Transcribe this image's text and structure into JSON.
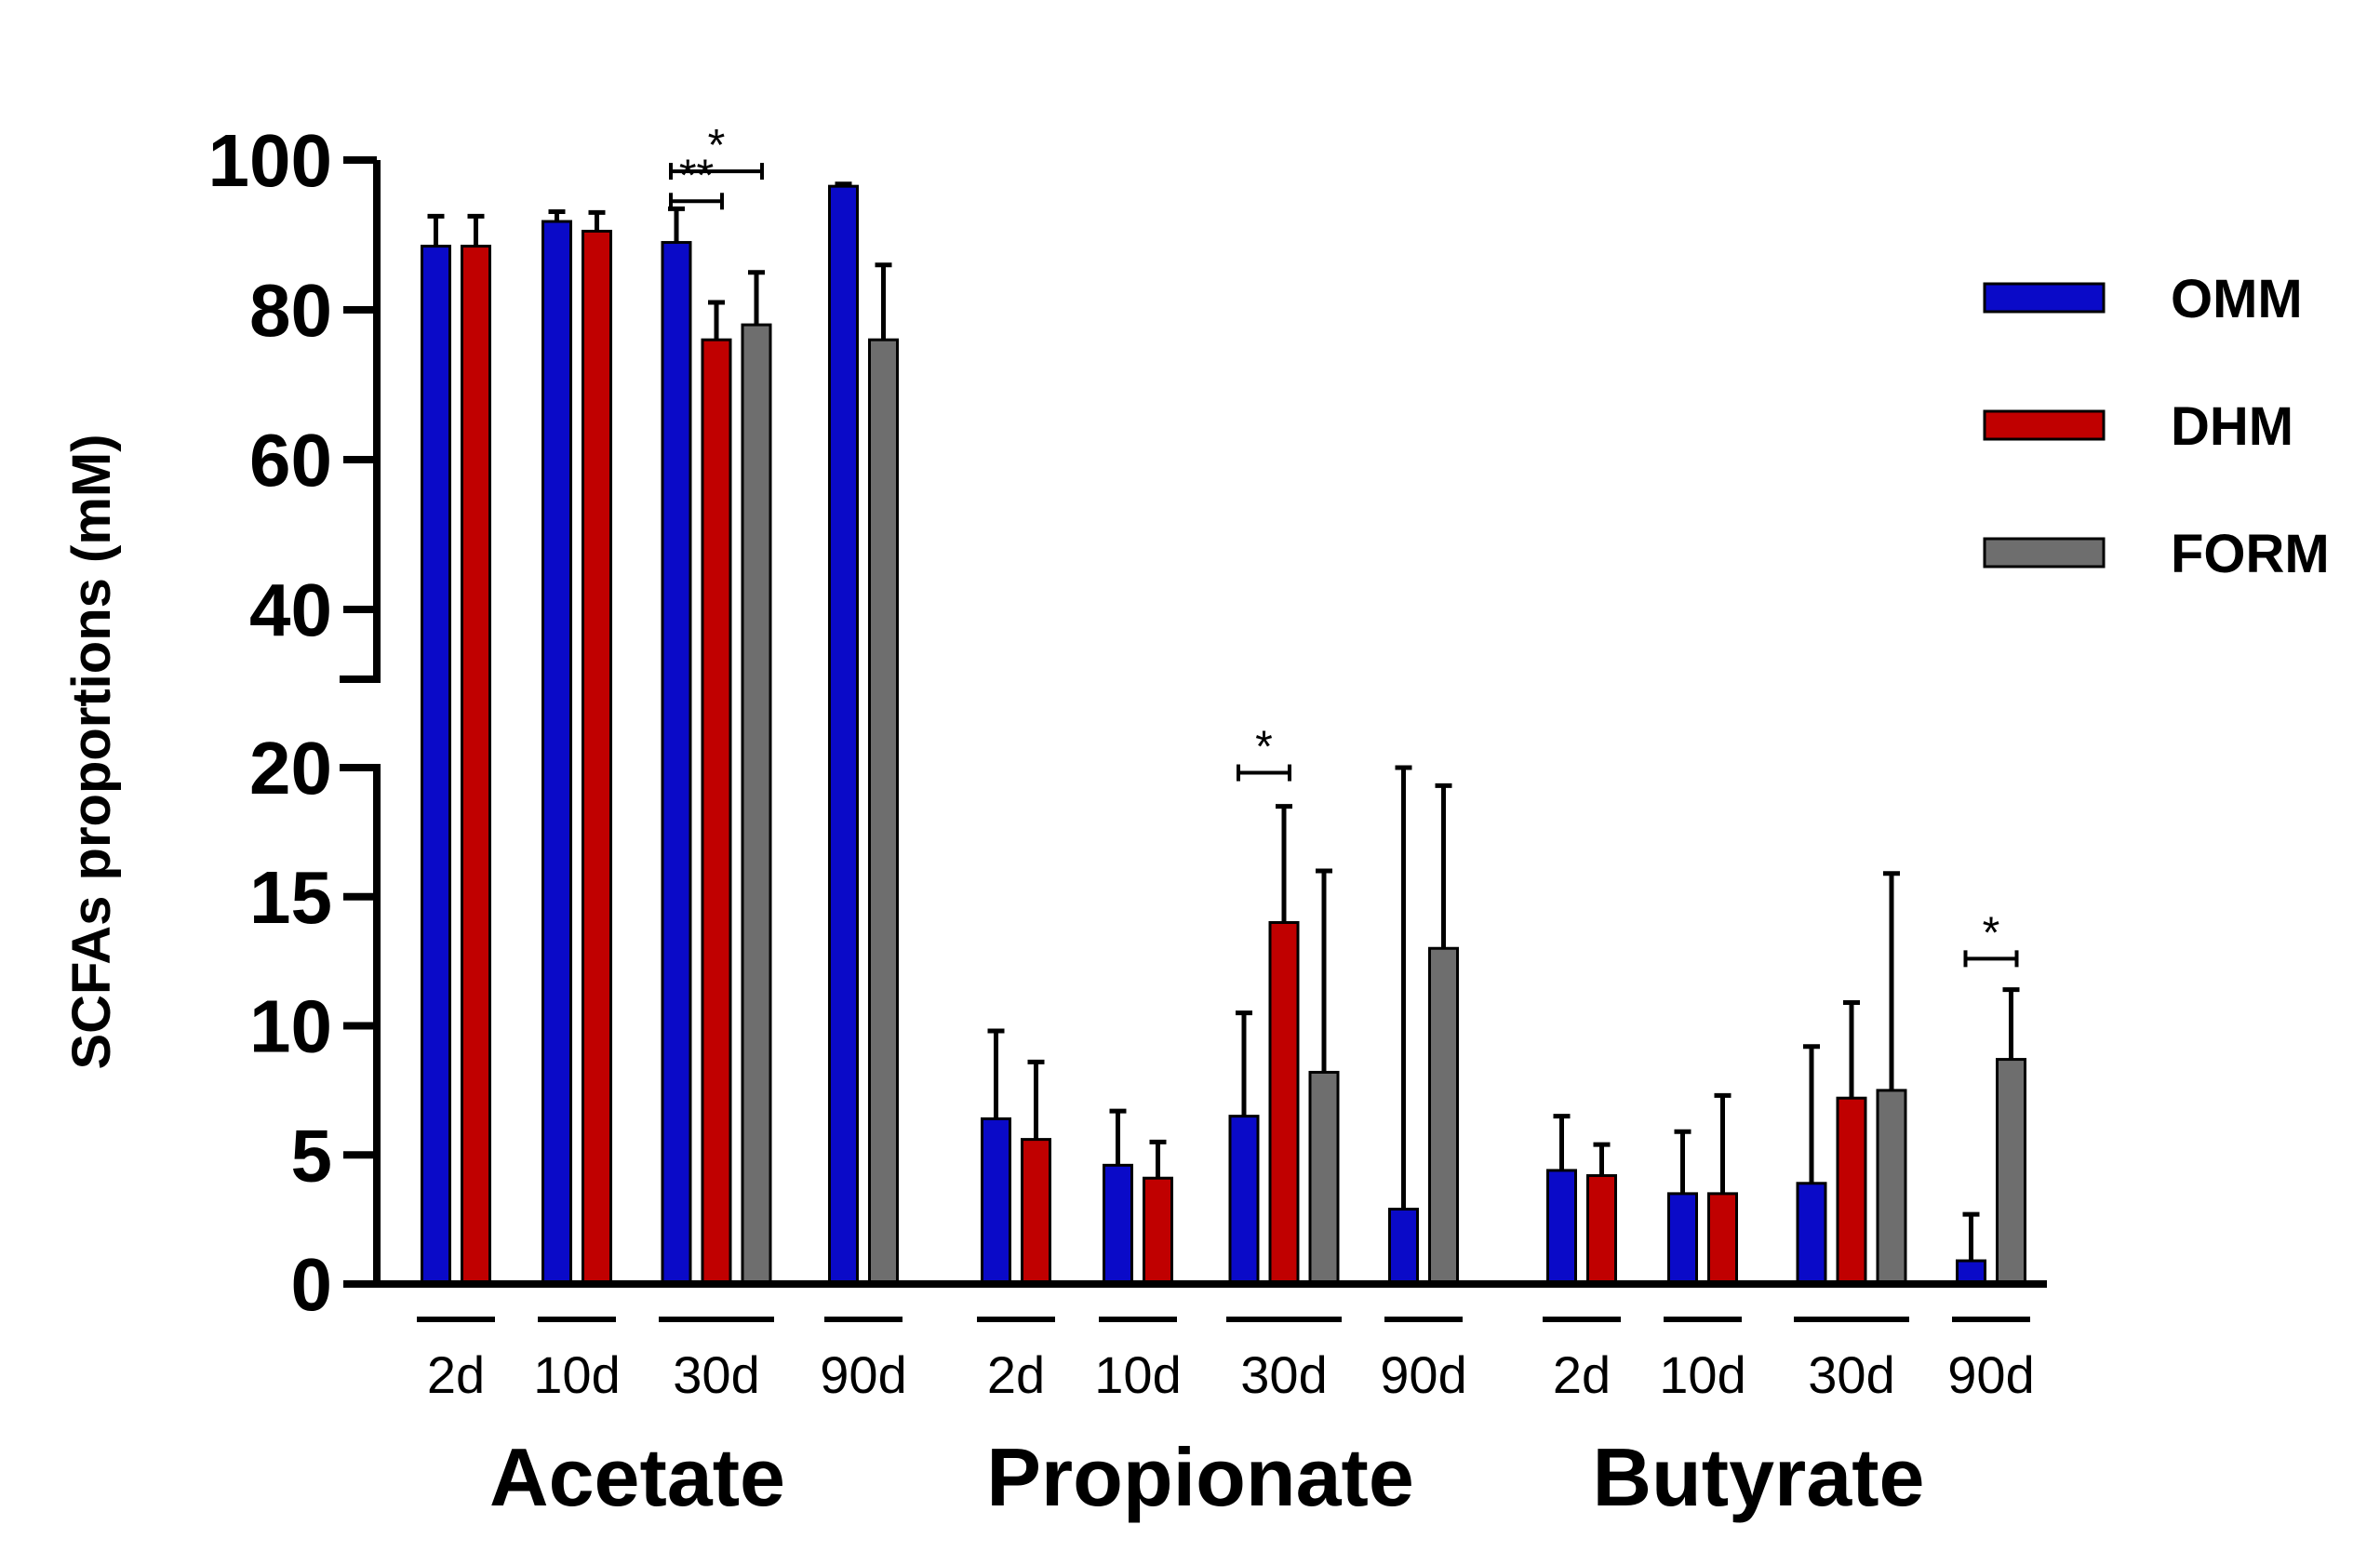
{
  "chart_data": {
    "type": "bar",
    "ylabel": "SCFAs proportions (mM)",
    "axis_break": {
      "lower": [
        0,
        20
      ],
      "upper": [
        40,
        100
      ]
    },
    "lower_ticks": [
      "0",
      "5",
      "10",
      "15",
      "20"
    ],
    "upper_ticks": [
      "40",
      "60",
      "80",
      "100"
    ],
    "colors": {
      "OMM": "#0a0ac8",
      "DHM": "#c00000",
      "FORM": "#6e6e6e"
    },
    "legend": [
      {
        "name": "OMM",
        "color": "#0a0ac8"
      },
      {
        "name": "DHM",
        "color": "#c00000"
      },
      {
        "name": "FORM",
        "color": "#6e6e6e"
      }
    ],
    "groups": [
      {
        "name": "Acetate",
        "timepoints": [
          {
            "label": "2d",
            "bars": [
              {
                "series": "OMM",
                "value": 88.5,
                "err": 4.0
              },
              {
                "series": "DHM",
                "value": 88.5,
                "err": 4.0
              }
            ]
          },
          {
            "label": "10d",
            "bars": [
              {
                "series": "OMM",
                "value": 91.8,
                "err": 1.3
              },
              {
                "series": "DHM",
                "value": 90.5,
                "err": 2.5
              }
            ]
          },
          {
            "label": "30d",
            "bars": [
              {
                "series": "OMM",
                "value": 89.0,
                "err": 4.5
              },
              {
                "series": "DHM",
                "value": 76.0,
                "err": 5.0
              },
              {
                "series": "FORM",
                "value": 78.0,
                "err": 7.0
              }
            ]
          },
          {
            "label": "90d",
            "bars": [
              {
                "series": "OMM",
                "value": 96.5,
                "err": 0.3
              },
              {
                "series": "FORM",
                "value": 76.0,
                "err": 10.0
              }
            ]
          }
        ]
      },
      {
        "name": "Propionate",
        "timepoints": [
          {
            "label": "2d",
            "bars": [
              {
                "series": "OMM",
                "value": 6.4,
                "err": 3.4
              },
              {
                "series": "DHM",
                "value": 5.6,
                "err": 3.0
              }
            ]
          },
          {
            "label": "10d",
            "bars": [
              {
                "series": "OMM",
                "value": 4.6,
                "err": 2.1
              },
              {
                "series": "DHM",
                "value": 4.1,
                "err": 1.4
              }
            ]
          },
          {
            "label": "30d",
            "bars": [
              {
                "series": "OMM",
                "value": 6.5,
                "err": 4.0
              },
              {
                "series": "DHM",
                "value": 14.0,
                "err": 4.5
              },
              {
                "series": "FORM",
                "value": 8.2,
                "err": 7.8
              }
            ]
          },
          {
            "label": "90d",
            "bars": [
              {
                "series": "OMM",
                "value": 2.9,
                "err": 18.7
              },
              {
                "series": "FORM",
                "value": 13.0,
                "err": 6.3
              }
            ]
          }
        ]
      },
      {
        "name": "Butyrate",
        "timepoints": [
          {
            "label": "2d",
            "bars": [
              {
                "series": "OMM",
                "value": 4.4,
                "err": 2.1
              },
              {
                "series": "DHM",
                "value": 4.2,
                "err": 1.2
              }
            ]
          },
          {
            "label": "10d",
            "bars": [
              {
                "series": "OMM",
                "value": 3.5,
                "err": 2.4
              },
              {
                "series": "DHM",
                "value": 3.5,
                "err": 3.8
              }
            ]
          },
          {
            "label": "30d",
            "bars": [
              {
                "series": "OMM",
                "value": 3.9,
                "err": 5.3
              },
              {
                "series": "DHM",
                "value": 7.2,
                "err": 3.7
              },
              {
                "series": "FORM",
                "value": 7.5,
                "err": 8.4
              }
            ]
          },
          {
            "label": "90d",
            "bars": [
              {
                "series": "OMM",
                "value": 0.9,
                "err": 1.8
              },
              {
                "series": "FORM",
                "value": 8.7,
                "err": 2.7
              }
            ]
          }
        ]
      }
    ],
    "annotations": [
      {
        "group": "Acetate",
        "timepoint": "30d",
        "from": "OMM",
        "to": "FORM",
        "label": "*",
        "value": 98.5
      },
      {
        "group": "Acetate",
        "timepoint": "30d",
        "from": "OMM",
        "to": "DHM",
        "label": "**",
        "value": 94.5
      },
      {
        "group": "Propionate",
        "timepoint": "30d",
        "from": "OMM",
        "to": "DHM",
        "label": "*",
        "value": 19.8
      },
      {
        "group": "Butyrate",
        "timepoint": "90d",
        "from": "OMM",
        "to": "FORM",
        "label": "*",
        "value": 12.6
      }
    ]
  }
}
